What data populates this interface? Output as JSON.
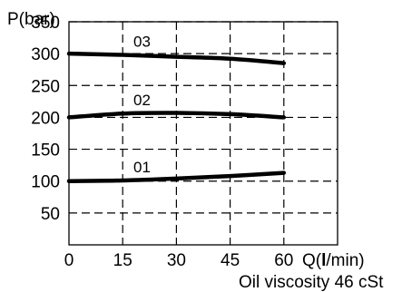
{
  "chart_data": {
    "type": "line",
    "ylabel": "P(bar)",
    "xlabel": "Q(l/min)",
    "note": "Oil viscosity 46 cSt",
    "xlim": [
      0,
      75
    ],
    "ylim": [
      0,
      350
    ],
    "x_ticks": [
      0,
      15,
      30,
      45,
      60
    ],
    "y_ticks": [
      50,
      100,
      150,
      200,
      250,
      300,
      350
    ],
    "grid": true,
    "series": [
      {
        "name": "01",
        "x": [
          0,
          15,
          30,
          45,
          60
        ],
        "values": [
          100,
          101,
          104,
          108,
          113
        ]
      },
      {
        "name": "02",
        "x": [
          0,
          15,
          30,
          45,
          60
        ],
        "values": [
          200,
          206,
          207,
          205,
          200
        ]
      },
      {
        "name": "03",
        "x": [
          0,
          15,
          30,
          45,
          60
        ],
        "values": [
          300,
          298,
          295,
          292,
          285
        ]
      }
    ]
  }
}
